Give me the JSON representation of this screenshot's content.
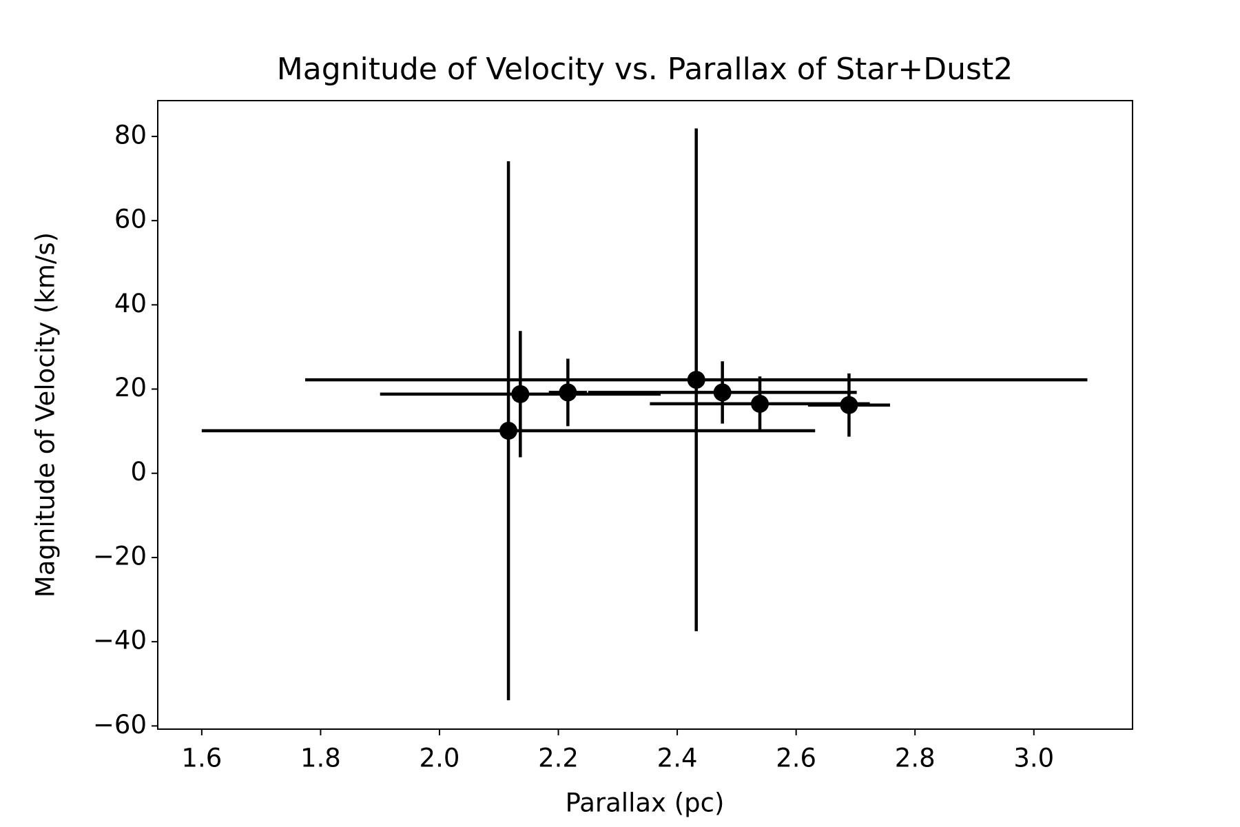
{
  "chart_data": {
    "type": "errorbar",
    "title": "Magnitude of Velocity vs. Parallax of Star+Dust2",
    "x_label": "Parallax (pc)",
    "y_label": "Magnitude of Velocity (km/s)",
    "x": [
      2.116,
      2.136,
      2.216,
      2.432,
      2.476,
      2.539,
      2.689
    ],
    "y": [
      10.1,
      18.8,
      19.2,
      22.2,
      19.2,
      16.5,
      16.2
    ],
    "xerr": [
      0.516,
      0.236,
      0.032,
      0.658,
      0.226,
      0.185,
      0.069
    ],
    "yerr": [
      64,
      15,
      8,
      59.7,
      7.4,
      6.5,
      7.5
    ],
    "color": "#000000",
    "xlim": [
      1.526,
      3.166
    ],
    "ylim": [
      -60.76,
      88.5
    ],
    "xticks": [
      1.6,
      1.8,
      {
        "value": 2.0,
        "label": "2.0"
      },
      2.2,
      2.4,
      2.6,
      2.8,
      {
        "value": 3.0,
        "label": "3.0"
      }
    ],
    "yticks": [
      {
        "value": -60,
        "label": "−60"
      },
      {
        "value": -40,
        "label": "−40"
      },
      {
        "value": -20,
        "label": "−20"
      },
      0,
      20,
      40,
      60,
      80
    ]
  }
}
